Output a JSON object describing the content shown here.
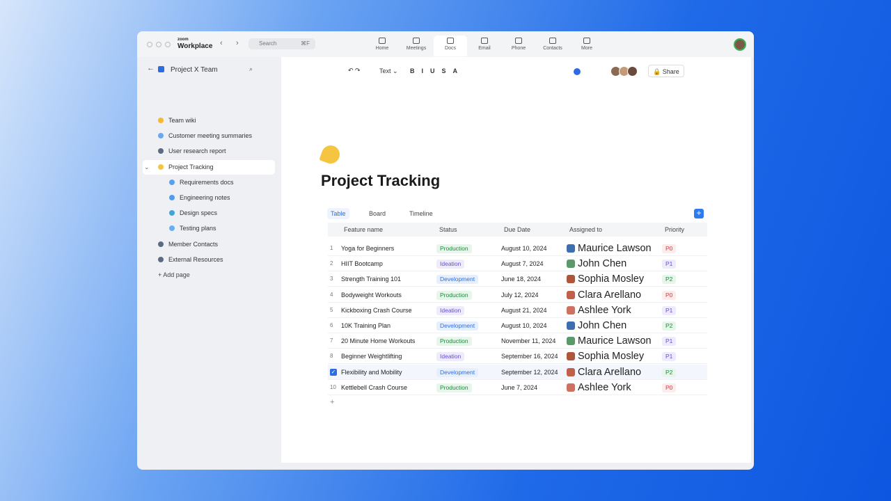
{
  "app": {
    "brand_small": "zoom",
    "brand": "Workplace",
    "search": "Search",
    "shortcut": "⌘F"
  },
  "nav": [
    {
      "label": "Home"
    },
    {
      "label": "Meetings"
    },
    {
      "label": "Docs",
      "active": true
    },
    {
      "label": "Email"
    },
    {
      "label": "Phone"
    },
    {
      "label": "Contacts"
    },
    {
      "label": "More"
    }
  ],
  "sidebar": {
    "title": "Project X Team",
    "items": [
      {
        "label": "Team wiki"
      },
      {
        "label": "Customer meeting summaries"
      },
      {
        "label": "User research report"
      },
      {
        "label": "Project Tracking",
        "active": true,
        "children": [
          {
            "label": "Requirements docs"
          },
          {
            "label": "Engineering notes"
          },
          {
            "label": "Design specs"
          },
          {
            "label": "Testing plans"
          }
        ]
      },
      {
        "label": "Member Contacts"
      },
      {
        "label": "External Resources"
      }
    ],
    "add_page": "Add page"
  },
  "toolbar": {
    "text_style": "Text",
    "share": "Share"
  },
  "document": {
    "title": "Project Tracking"
  },
  "views": [
    {
      "label": "Table",
      "active": true
    },
    {
      "label": "Board"
    },
    {
      "label": "Timeline"
    }
  ],
  "table": {
    "columns": [
      "Feature name",
      "Status",
      "Due Date",
      "Assigned to",
      "Priority"
    ],
    "rows": [
      {
        "num": 1,
        "feature": "Yoga for Beginners",
        "status": "Production",
        "status_tone": "green",
        "due": "August 10, 2024",
        "assignee": "Maurice Lawson",
        "priority": "P0",
        "priority_tone": "red"
      },
      {
        "num": 2,
        "feature": "HIIT Bootcamp",
        "status": "Ideation",
        "status_tone": "purple",
        "due": "August 7, 2024",
        "assignee": "John Chen",
        "priority": "P1",
        "priority_tone": "purple"
      },
      {
        "num": 3,
        "feature": "Strength Training 101",
        "status": "Development",
        "status_tone": "blue",
        "due": "June 18, 2024",
        "assignee": "Sophia Mosley",
        "priority": "P2",
        "priority_tone": "green"
      },
      {
        "num": 4,
        "feature": "Bodyweight Workouts",
        "status": "Production",
        "status_tone": "green",
        "due": "July 12, 2024",
        "assignee": "Clara Arellano",
        "priority": "P0",
        "priority_tone": "red"
      },
      {
        "num": 5,
        "feature": "Kickboxing Crash Course",
        "status": "Ideation",
        "status_tone": "purple",
        "due": "August 21, 2024",
        "assignee": "Ashlee York",
        "priority": "P1",
        "priority_tone": "purple"
      },
      {
        "num": 6,
        "feature": "10K Training Plan",
        "status": "Development",
        "status_tone": "blue",
        "due": "August 10, 2024",
        "assignee": "John Chen",
        "priority": "P2",
        "priority_tone": "green"
      },
      {
        "num": 7,
        "feature": "20 Minute Home Workouts",
        "status": "Production",
        "status_tone": "green",
        "due": "November 11, 2024",
        "assignee": "Maurice Lawson",
        "priority": "P1",
        "priority_tone": "purple"
      },
      {
        "num": 8,
        "feature": "Beginner Weightlifting",
        "status": "Ideation",
        "status_tone": "purple",
        "due": "September 16, 2024",
        "assignee": "Sophia Mosley",
        "priority": "P1",
        "priority_tone": "purple"
      },
      {
        "checked": true,
        "feature": "Flexibility and Mobility",
        "status": "Development",
        "status_tone": "blue",
        "due": "September 12, 2024",
        "assignee": "Clara Arellano",
        "priority": "P2",
        "priority_tone": "green"
      },
      {
        "num": 10,
        "feature": "Kettlebell Crash Course",
        "status": "Production",
        "status_tone": "green",
        "due": "June 7, 2024",
        "assignee": "Ashlee York",
        "priority": "P0",
        "priority_tone": "red"
      }
    ]
  }
}
